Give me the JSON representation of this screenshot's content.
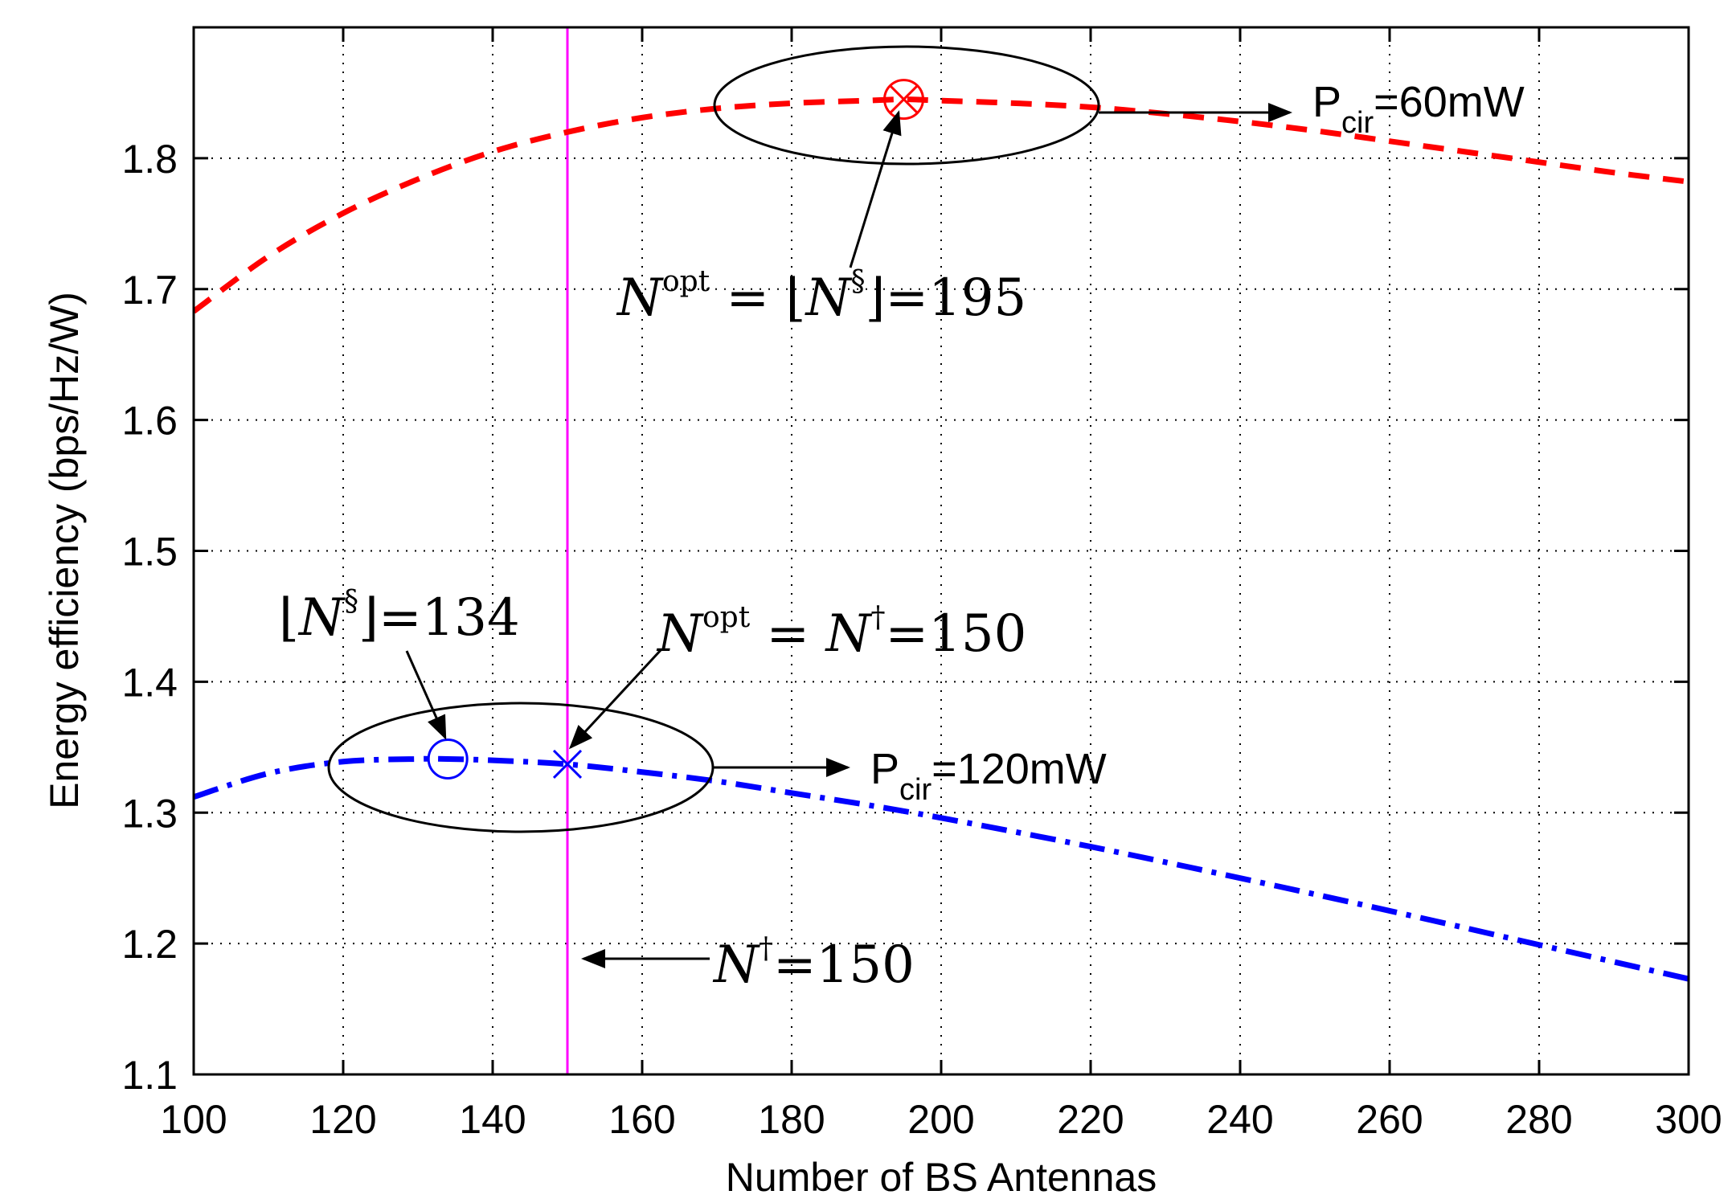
{
  "chart_data": {
    "type": "line",
    "xlabel": "Number of BS Antennas",
    "ylabel": "Energy efficiency (bps/Hz/W)",
    "xlim": [
      100,
      300
    ],
    "ylim": [
      1.1,
      1.9
    ],
    "xticks": [
      100,
      120,
      140,
      160,
      180,
      200,
      220,
      240,
      260,
      280,
      300
    ],
    "xtick_labels": [
      "100",
      "120",
      "140",
      "160",
      "180",
      "200",
      "220",
      "240",
      "260",
      "280",
      "300"
    ],
    "yticks": [
      1.1,
      1.2,
      1.3,
      1.4,
      1.5,
      1.6,
      1.7,
      1.8
    ],
    "ytick_labels": [
      "1.1",
      "1.2",
      "1.3",
      "1.4",
      "1.5",
      "1.6",
      "1.7",
      "1.8"
    ],
    "grid": true,
    "series": [
      {
        "name": "P_cir=60mW",
        "color": "#ff0000",
        "style": "dashed",
        "x": [
          100,
          110,
          120,
          130,
          140,
          150,
          160,
          170,
          180,
          190,
          195,
          200,
          210,
          220,
          230,
          240,
          250,
          260,
          270,
          280,
          290,
          300
        ],
        "y": [
          1.683,
          1.725,
          1.758,
          1.784,
          1.805,
          1.82,
          1.831,
          1.838,
          1.842,
          1.844,
          1.845,
          1.844,
          1.842,
          1.839,
          1.834,
          1.828,
          1.821,
          1.813,
          1.805,
          1.797,
          1.789,
          1.782
        ]
      },
      {
        "name": "P_cir=120mW",
        "color": "#0000ff",
        "style": "dashdot",
        "x": [
          100,
          110,
          120,
          130,
          134,
          140,
          150,
          160,
          170,
          180,
          190,
          200,
          220,
          240,
          260,
          280,
          300
        ],
        "y": [
          1.312,
          1.33,
          1.339,
          1.341,
          1.341,
          1.34,
          1.337,
          1.331,
          1.324,
          1.315,
          1.306,
          1.296,
          1.274,
          1.25,
          1.225,
          1.199,
          1.173
        ]
      }
    ],
    "vline": {
      "x": 150,
      "color": "#ff00ff"
    },
    "markers": [
      {
        "name": "opt-60mW",
        "shape": "circle-x",
        "x": 195,
        "y": 1.845,
        "color": "#ff0000"
      },
      {
        "name": "floor-120mW",
        "shape": "circle",
        "x": 134,
        "y": 1.341,
        "color": "#0000ff"
      },
      {
        "name": "opt-120mW",
        "shape": "x",
        "x": 150,
        "y": 1.337,
        "color": "#0000ff"
      }
    ],
    "annotations": {
      "pcir_60": {
        "base": "P",
        "sub": "cir",
        "rest": "=60mW"
      },
      "pcir_120": {
        "base": "P",
        "sub": "cir",
        "rest": "=120mW"
      },
      "nopt_195": {
        "n": "N",
        "sup": "opt",
        "mid": " = ⌊",
        "n2": "N",
        "sup2": "§",
        "rest": "⌋=195"
      },
      "floor_134": {
        "pre": "⌊",
        "n": "N",
        "sup": "§",
        "rest": "⌋=134"
      },
      "nopt_150": {
        "n": "N",
        "sup": "opt",
        "mid": " = ",
        "n2": "N",
        "sup2": "†",
        "rest": "=150"
      },
      "ndag_150": {
        "n": "N",
        "sup": "†",
        "rest": "=150"
      }
    }
  }
}
